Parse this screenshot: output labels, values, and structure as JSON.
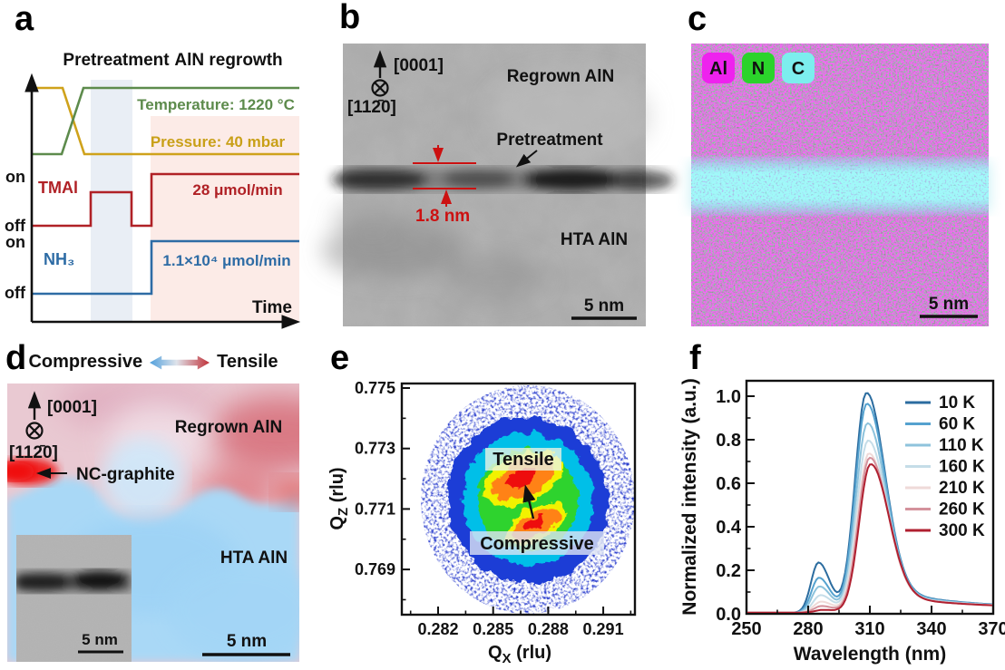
{
  "figure": {
    "panels": {
      "a": {
        "label": "a",
        "phase1": "Pretreatment",
        "phase2": "AlN regrowth",
        "temperature_label": "Temperature: 1220 °C",
        "pressure_label": "Pressure: 40 mbar",
        "tmal_label": "TMAl",
        "tmal_flow": "28 μmol/min",
        "nh3_label": "NH₃",
        "nh3_flow": "1.1×10⁴ μmol/min",
        "on1": "on",
        "off1": "off",
        "on2": "on",
        "off2": "off",
        "time_label": "Time",
        "colors": {
          "temperature": "#5d8b4c",
          "pressure": "#cfa21b",
          "tmal": "#b02126",
          "nh3": "#2e6ca5",
          "pretreat_shade": "#e9eef5",
          "regrowth_shade": "#fcebe7"
        }
      },
      "b": {
        "label": "b",
        "axis_up": "[0001]",
        "axis_in": "[112̄0]",
        "regrown": "Regrown AlN",
        "pretreatment": "Pretreatment",
        "thickness": "1.8 nm",
        "hta": "HTA AlN",
        "scalebar": "5 nm"
      },
      "c": {
        "label": "c",
        "legend": [
          {
            "element": "Al",
            "color": "#ee22ee"
          },
          {
            "element": "N",
            "color": "#2bd32b"
          },
          {
            "element": "C",
            "color": "#7ceeee"
          }
        ],
        "scalebar": "5 nm"
      },
      "d": {
        "label": "d",
        "compressive": "Compressive",
        "tensile": "Tensile",
        "axis_up": "[0001]",
        "axis_in": "[112̄0]",
        "regrown": "Regrown AlN",
        "nc_graphite": "NC-graphite",
        "hta": "HTA AlN",
        "inset_scalebar": "5 nm",
        "scalebar": "5 nm"
      },
      "e": {
        "label": "e",
        "tensile": "Tensile",
        "compressive": "Compressive",
        "ylabel": {
          "q": "Q",
          "sub": "Z",
          "unit": " (rlu)"
        },
        "xlabel": {
          "q": "Q",
          "sub": "X",
          "unit": " (rlu)"
        }
      },
      "f": {
        "label": "f",
        "xlabel": "Wavelength (nm)",
        "ylabel": "Normalized intensity (a.u.)"
      }
    }
  },
  "chart_data": [
    {
      "panel": "a",
      "type": "line",
      "title": "MOCVD pretreatment and AlN regrowth process schematic",
      "xlabel": "Time",
      "phases": [
        "Pretreatment",
        "AlN regrowth"
      ],
      "series": [
        {
          "name": "Temperature",
          "value": "1220 °C",
          "color": "#5d8b4c",
          "profile": "low, ramp up during pretreatment, constant high"
        },
        {
          "name": "Pressure",
          "value": "40 mbar",
          "color": "#cfa21b",
          "profile": "high, ramp down during pretreatment, constant low"
        },
        {
          "name": "TMAl",
          "value": "28 μmol/min",
          "color": "#b02126",
          "profile": "off, pulse on during pretreatment, off, on during regrowth"
        },
        {
          "name": "NH₃",
          "value": "1.1×10⁴ μmol/min",
          "color": "#2e6ca5",
          "profile": "off, on during regrowth"
        }
      ]
    },
    {
      "panel": "e",
      "type": "heatmap",
      "title": "X-ray reciprocal space map",
      "xlabel": "QX (rlu)",
      "ylabel": "QZ (rlu)",
      "xlim": [
        0.28,
        0.293
      ],
      "ylim": [
        0.7675,
        0.7752
      ],
      "xticks": [
        0.282,
        0.285,
        0.288,
        0.291
      ],
      "yticks": [
        0.775,
        0.773,
        0.771,
        0.769
      ],
      "colormap": "rainbow blue→red",
      "peaks": [
        {
          "name": "Tensile",
          "qx": 0.2866,
          "qz": 0.772
        },
        {
          "name": "Compressive",
          "qx": 0.2873,
          "qz": 0.7705
        }
      ]
    },
    {
      "panel": "f",
      "type": "line",
      "title": "Temperature-dependent PL spectra",
      "xlabel": "Wavelength (nm)",
      "ylabel": "Normalized intensity (a.u.)",
      "xlim": [
        250,
        370
      ],
      "ylim": [
        0,
        1.05
      ],
      "xticks": [
        250,
        280,
        310,
        340,
        370
      ],
      "yticks": [
        0.0,
        0.2,
        0.4,
        0.6,
        0.8,
        1.0
      ],
      "legend_position": "upper right",
      "series": [
        {
          "name": "10 K",
          "color": "#2b6c9f",
          "main_peak_nm": 308.0,
          "main_peak_intensity": 1.0,
          "secondary_peak_nm": 285.0,
          "secondary_peak_intensity": 0.23
        },
        {
          "name": "60 K",
          "color": "#55a2cf",
          "main_peak_nm": 308.2,
          "main_peak_intensity": 0.95,
          "secondary_peak_nm": 285.2,
          "secondary_peak_intensity": 0.16
        },
        {
          "name": "110 K",
          "color": "#8ec3dc",
          "main_peak_nm": 308.5,
          "main_peak_intensity": 0.86,
          "secondary_peak_nm": 285.5,
          "secondary_peak_intensity": 0.12
        },
        {
          "name": "160 K",
          "color": "#c5dde8",
          "main_peak_nm": 308.8,
          "main_peak_intensity": 0.78,
          "secondary_peak_nm": 286.0,
          "secondary_peak_intensity": 0.08
        },
        {
          "name": "210 K",
          "color": "#efdad8",
          "main_peak_nm": 309.2,
          "main_peak_intensity": 0.72,
          "secondary_peak_nm": 286.3,
          "secondary_peak_intensity": 0.05
        },
        {
          "name": "260 K",
          "color": "#d4929c",
          "main_peak_nm": 309.6,
          "main_peak_intensity": 0.7,
          "secondary_peak_nm": 286.5,
          "secondary_peak_intensity": 0.03
        },
        {
          "name": "300 K",
          "color": "#b02030",
          "main_peak_nm": 310.0,
          "main_peak_intensity": 0.67,
          "secondary_peak_nm": 287.0,
          "secondary_peak_intensity": 0.012
        }
      ]
    }
  ]
}
